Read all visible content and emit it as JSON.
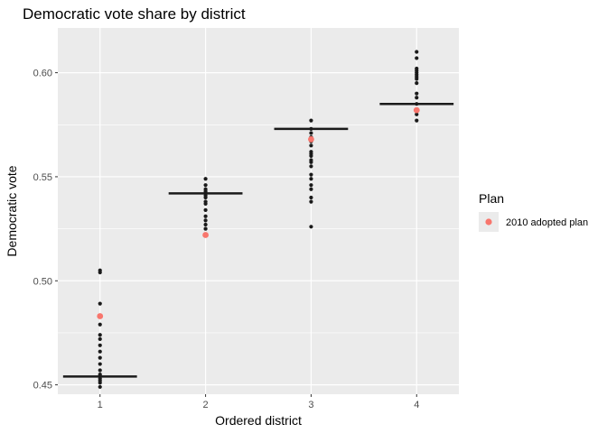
{
  "chart_data": {
    "type": "scatter",
    "title": "Democratic vote share by district",
    "xlabel": "Ordered district",
    "ylabel": "Democratic vote",
    "categories": [
      "1",
      "2",
      "3",
      "4"
    ],
    "y_ticks": [
      0.45,
      0.5,
      0.55,
      0.6
    ],
    "y_tick_labels": [
      "0.45",
      "0.50",
      "0.55",
      "0.60"
    ],
    "ylim": [
      0.4455,
      0.6215
    ],
    "grid": true,
    "legend": {
      "title": "Plan",
      "placement": "right",
      "entries": [
        {
          "label": "2010 adopted plan",
          "color": "#F8766D"
        }
      ]
    },
    "ensemble_color": "#1a1a1a",
    "ensemble_points": [
      [
        0.505,
        0.504,
        0.489,
        0.479,
        0.474,
        0.472,
        0.469,
        0.466,
        0.463,
        0.46,
        0.457,
        0.455,
        0.454,
        0.453,
        0.452,
        0.451,
        0.449
      ],
      [
        0.549,
        0.546,
        0.544,
        0.543,
        0.542,
        0.541,
        0.54,
        0.538,
        0.537,
        0.534,
        0.531,
        0.529,
        0.527,
        0.525
      ],
      [
        0.577,
        0.573,
        0.571,
        0.569,
        0.567,
        0.565,
        0.562,
        0.561,
        0.56,
        0.558,
        0.557,
        0.555,
        0.551,
        0.549,
        0.546,
        0.544,
        0.54,
        0.538,
        0.526
      ],
      [
        0.61,
        0.607,
        0.602,
        0.601,
        0.6,
        0.599,
        0.598,
        0.597,
        0.595,
        0.59,
        0.588,
        0.585,
        0.582,
        0.58,
        0.577
      ]
    ],
    "medians": [
      0.454,
      0.542,
      0.573,
      0.585
    ],
    "adopted_plan": [
      0.483,
      0.522,
      0.568,
      0.582
    ]
  }
}
